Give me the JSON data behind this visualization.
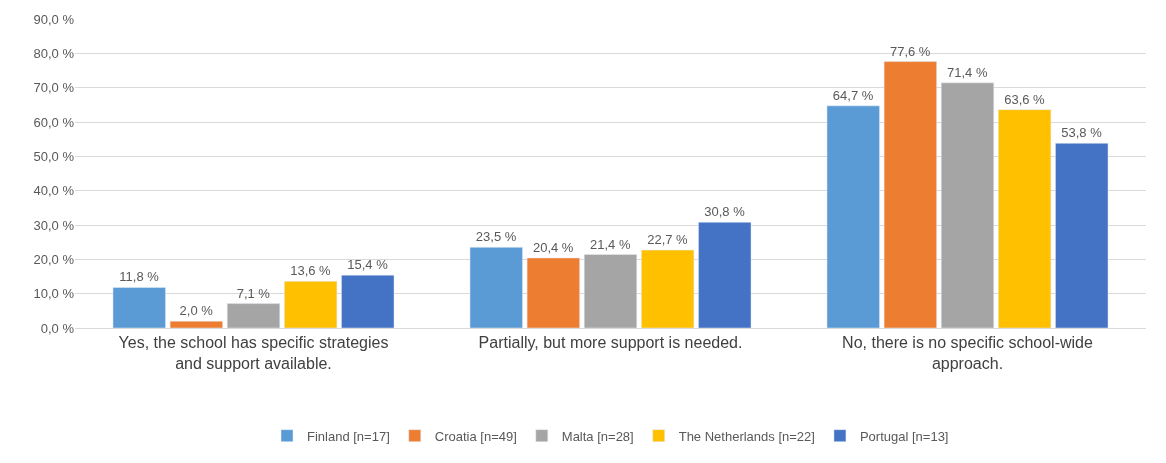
{
  "chart_data": {
    "type": "bar",
    "categories": [
      "Yes, the school has specific strategies\nand support available.",
      "Partially, but more support is needed.",
      "No, there is no specific school-wide\napproach."
    ],
    "series": [
      {
        "name": "Finland [n=17]",
        "color": "#5b9bd5",
        "values": [
          11.8,
          23.5,
          64.7
        ],
        "value_labels": [
          "11,8 %",
          "23,5 %",
          "64,7 %"
        ]
      },
      {
        "name": "Croatia [n=49]",
        "color": "#ed7d31",
        "values": [
          2.0,
          20.4,
          77.6
        ],
        "value_labels": [
          "2,0 %",
          "20,4 %",
          "77,6 %"
        ]
      },
      {
        "name": "Malta [n=28]",
        "color": "#a5a5a5",
        "values": [
          7.1,
          21.4,
          71.4
        ],
        "value_labels": [
          "7,1 %",
          "21,4 %",
          "71,4 %"
        ]
      },
      {
        "name": "The Netherlands [n=22]",
        "color": "#ffc000",
        "values": [
          13.6,
          22.7,
          63.6
        ],
        "value_labels": [
          "13,6 %",
          "22,7 %",
          "63,6 %"
        ]
      },
      {
        "name": "Portugal [n=13]",
        "color": "#4472c4",
        "values": [
          15.4,
          30.8,
          53.8
        ],
        "value_labels": [
          "15,4 %",
          "30,8 %",
          "53,8 %"
        ]
      }
    ],
    "ylim": [
      0,
      90
    ],
    "yticks": [
      {
        "value": 0,
        "label": "0,0 %"
      },
      {
        "value": 10,
        "label": "10,0 %"
      },
      {
        "value": 20,
        "label": "20,0 %"
      },
      {
        "value": 30,
        "label": "30,0 %"
      },
      {
        "value": 40,
        "label": "40,0 %"
      },
      {
        "value": 50,
        "label": "50,0 %"
      },
      {
        "value": 60,
        "label": "60,0 %"
      },
      {
        "value": 70,
        "label": "70,0 %"
      },
      {
        "value": 80,
        "label": "80,0 %"
      },
      {
        "value": 90,
        "label": "90,0 %"
      }
    ],
    "grid": "y",
    "legend": "bottom"
  }
}
